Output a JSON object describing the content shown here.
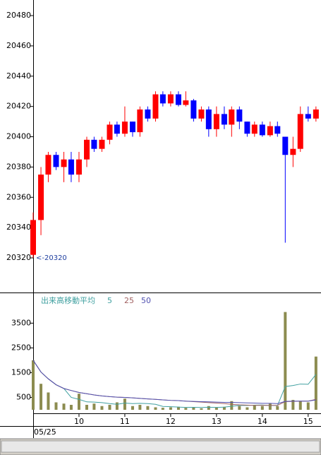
{
  "chart_data": [
    {
      "type": "candlestick",
      "x": [
        9.0,
        9.17,
        9.33,
        9.5,
        9.67,
        9.83,
        10.0,
        10.17,
        10.33,
        10.5,
        10.67,
        10.83,
        11.0,
        11.17,
        11.33,
        11.5,
        11.67,
        11.83,
        12.0,
        12.17,
        12.33,
        12.5,
        12.67,
        12.83,
        13.0,
        13.17,
        13.33,
        13.5,
        13.67,
        13.83,
        14.0,
        14.17,
        14.33,
        14.5,
        14.67,
        14.83,
        15.0,
        15.17
      ],
      "open": [
        20322,
        20345,
        20375,
        20388,
        20380,
        20385,
        20375,
        20385,
        20398,
        20392,
        20398,
        20408,
        20402,
        20410,
        20403,
        20418,
        20412,
        20428,
        20422,
        20428,
        20421,
        20424,
        20412,
        20418,
        20405,
        20415,
        20408,
        20418,
        20410,
        20402,
        20408,
        20401,
        20407,
        20400,
        20388,
        20392,
        20415,
        20412
      ],
      "high": [
        20350,
        20380,
        20390,
        20390,
        20390,
        20390,
        20390,
        20400,
        20400,
        20400,
        20410,
        20410,
        20420,
        20410,
        20420,
        20420,
        20430,
        20430,
        20430,
        20430,
        20430,
        20425,
        20420,
        20420,
        20420,
        20420,
        20420,
        20420,
        20410,
        20410,
        20410,
        20410,
        20410,
        20400,
        20400,
        20420,
        20420,
        20420
      ],
      "low": [
        20320,
        20335,
        20370,
        20378,
        20370,
        20370,
        20370,
        20380,
        20390,
        20390,
        20395,
        20400,
        20400,
        20400,
        20400,
        20410,
        20410,
        20420,
        20420,
        20420,
        20420,
        20410,
        20410,
        20400,
        20400,
        20405,
        20400,
        20405,
        20400,
        20400,
        20400,
        20400,
        20400,
        20330,
        20380,
        20390,
        20410,
        20410
      ],
      "close": [
        20345,
        20375,
        20388,
        20380,
        20385,
        20375,
        20385,
        20398,
        20392,
        20398,
        20408,
        20402,
        20410,
        20403,
        20418,
        20412,
        20428,
        20422,
        20428,
        20421,
        20424,
        20412,
        20418,
        20405,
        20415,
        20408,
        20418,
        20410,
        20402,
        20408,
        20401,
        20407,
        20402,
        20388,
        20392,
        20415,
        20412,
        20418
      ],
      "up_color": "#ff0000",
      "down_color": "#0000ff",
      "xlim": [
        9,
        15.28
      ],
      "ylim": [
        20297.6,
        20490.3
      ],
      "yticks": [
        20320,
        20340,
        20360,
        20380,
        20400,
        20420,
        20440,
        20460,
        20480
      ],
      "annotation": {
        "label": "<-20320",
        "value": 20320
      }
    },
    {
      "type": "bar",
      "title": "出来高移動平均",
      "x": [
        9.0,
        9.17,
        9.33,
        9.5,
        9.67,
        9.83,
        10.0,
        10.17,
        10.33,
        10.5,
        10.67,
        10.83,
        11.0,
        11.17,
        11.33,
        11.5,
        11.67,
        11.83,
        12.0,
        12.17,
        12.33,
        12.5,
        12.67,
        12.83,
        13.0,
        13.17,
        13.33,
        13.5,
        13.67,
        13.83,
        14.0,
        14.17,
        14.33,
        14.5,
        14.67,
        14.83,
        15.0,
        15.17
      ],
      "values": [
        2000,
        1050,
        700,
        300,
        250,
        200,
        650,
        200,
        250,
        150,
        200,
        300,
        450,
        150,
        200,
        150,
        100,
        80,
        100,
        120,
        80,
        100,
        60,
        150,
        100,
        120,
        350,
        150,
        100,
        200,
        150,
        250,
        150,
        3950,
        400,
        350,
        300,
        2150
      ],
      "color": "#8c8c50",
      "series": [
        {
          "name": "5",
          "color": "#40a0a0",
          "values": [
            2000,
            1525,
            1250,
            1012,
            860,
            500,
            420,
            320,
            310,
            290,
            250,
            220,
            270,
            250,
            260,
            250,
            220,
            136,
            126,
            110,
            96,
            100,
            92,
            102,
            98,
            106,
            144,
            174,
            174,
            188,
            194,
            170,
            170,
            940,
            980,
            1040,
            1030,
            1430
          ]
        },
        {
          "name": "25",
          "color": "#a06060",
          "values": [
            2000,
            1525,
            1250,
            1012,
            860,
            780,
            700,
            650,
            600,
            560,
            530,
            510,
            500,
            480,
            460,
            440,
            420,
            400,
            380,
            370,
            350,
            330,
            310,
            290,
            270,
            250,
            220,
            200,
            190,
            180,
            180,
            180,
            180,
            330,
            340,
            350,
            350,
            420
          ]
        },
        {
          "name": "50",
          "color": "#5050b0",
          "values": [
            2000,
            1525,
            1250,
            1012,
            860,
            780,
            700,
            650,
            600,
            560,
            530,
            510,
            500,
            480,
            460,
            440,
            420,
            400,
            380,
            370,
            350,
            340,
            330,
            320,
            310,
            300,
            300,
            290,
            280,
            270,
            260,
            260,
            250,
            340,
            350,
            350,
            350,
            400
          ]
        }
      ],
      "xlim": [
        9,
        15.28
      ],
      "ylim": [
        0,
        4710
      ],
      "yticks": [
        500,
        1500,
        2500,
        3500
      ],
      "xticks": [
        10,
        11,
        12,
        13,
        14,
        15
      ],
      "date_label": "05/25"
    }
  ]
}
